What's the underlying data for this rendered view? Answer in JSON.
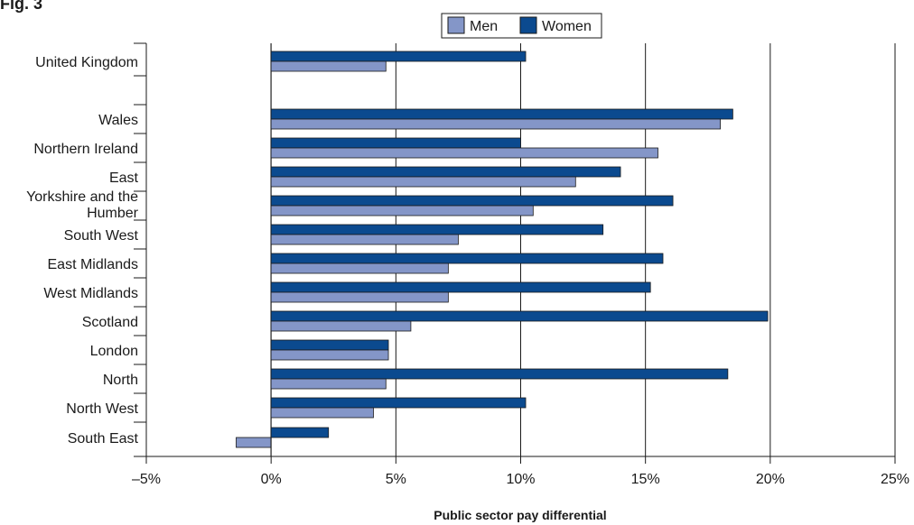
{
  "header_fragment": "Fig. 3",
  "colors": {
    "men": "#8496c8",
    "women": "#0b4a8f",
    "axis": "#1a1a1a"
  },
  "chart_data": {
    "type": "bar",
    "orientation": "horizontal",
    "xlabel": "Public sector pay differential",
    "xlim": [
      -5,
      25
    ],
    "xticks": [
      -5,
      0,
      5,
      10,
      15,
      20,
      25
    ],
    "tick_labels": [
      "–5%",
      "0%",
      "5%",
      "10%",
      "15%",
      "20%",
      "25%"
    ],
    "grid": "vertical",
    "legend": {
      "placement": "top",
      "entries": [
        "Men",
        "Women"
      ]
    },
    "categories": [
      "United Kingdom",
      "Wales",
      "Northern Ireland",
      "East",
      "Yorkshire and the Humber",
      "South West",
      "East Midlands",
      "West Midlands",
      "Scotland",
      "London",
      "North",
      "North West",
      "South East"
    ],
    "series": [
      {
        "name": "Women",
        "values": [
          10.2,
          18.5,
          10.0,
          14.0,
          16.1,
          13.3,
          15.7,
          15.2,
          19.9,
          4.7,
          18.3,
          10.2,
          2.3
        ]
      },
      {
        "name": "Men",
        "values": [
          4.6,
          18.0,
          15.5,
          12.2,
          10.5,
          7.5,
          7.1,
          7.1,
          5.6,
          4.7,
          4.6,
          4.1,
          -1.4
        ]
      }
    ]
  }
}
